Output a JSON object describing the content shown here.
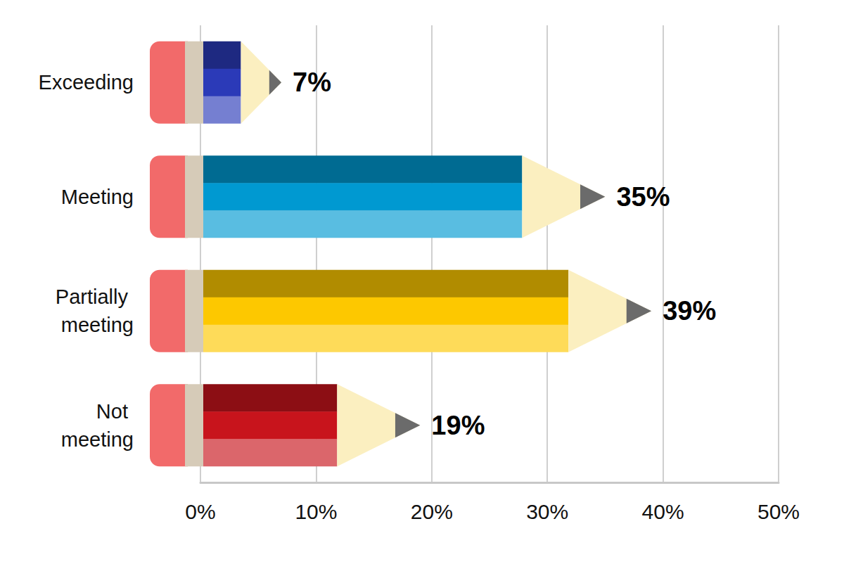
{
  "chart_data": {
    "type": "bar",
    "orientation": "horizontal",
    "categories": [
      "Exceeding",
      "Meeting",
      "Partially meeting",
      "Not meeting"
    ],
    "values": [
      7,
      35,
      39,
      19
    ],
    "value_labels": [
      "7%",
      "35%",
      "39%",
      "19%"
    ],
    "colors": [
      "#2b3ab8",
      "#0099d1",
      "#fdc800",
      "#c8141c"
    ],
    "xlim": [
      0,
      50
    ],
    "xticks": [
      {
        "value": 0,
        "label": "0%"
      },
      {
        "value": 10,
        "label": "10%"
      },
      {
        "value": 20,
        "label": "20%"
      },
      {
        "value": 30,
        "label": "30%"
      },
      {
        "value": 40,
        "label": "40%"
      },
      {
        "value": 50,
        "label": "50%"
      }
    ],
    "grid": true,
    "data_labels": true
  }
}
